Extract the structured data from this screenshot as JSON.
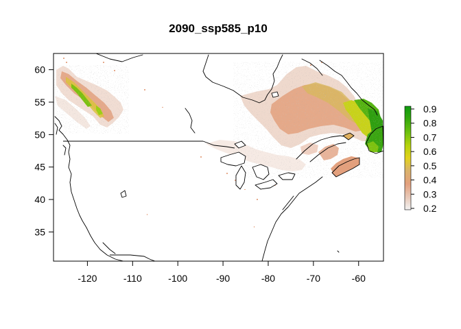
{
  "title": "2090_ssp585_p10",
  "map": {
    "projection": "longitude-latitude",
    "lon_range": [
      -127.5,
      -54.5
    ],
    "lat_range": [
      30.5,
      62.5
    ],
    "x_ticks": [
      -120,
      -110,
      -100,
      -90,
      -80,
      -70,
      -60
    ],
    "y_ticks": [
      35,
      40,
      45,
      50,
      55,
      60
    ],
    "x_tick_labels": [
      "-120",
      "-110",
      "-100",
      "-90",
      "-80",
      "-70",
      "-60"
    ],
    "y_tick_labels": [
      "35",
      "40",
      "45",
      "50",
      "55",
      "60"
    ]
  },
  "legend": {
    "type": "continuous colorbar",
    "range": [
      0.2,
      0.9
    ],
    "ticks": [
      "0.9",
      "0.8",
      "0.7",
      "0.6",
      "0.5",
      "0.4",
      "0.3",
      "0.2"
    ],
    "colors": [
      "#f2f2f2",
      "#e8c9b8",
      "#e3a07d",
      "#dab36a",
      "#e2d21c",
      "#b6d30c",
      "#6cc00e",
      "#34a80d",
      "#0f9a10"
    ]
  },
  "colors": {
    "low": "#f0e0d8",
    "mid_low": "#e6a98a",
    "mid": "#e0c21a",
    "high": "#1f9e12",
    "outline": "#000000"
  }
}
